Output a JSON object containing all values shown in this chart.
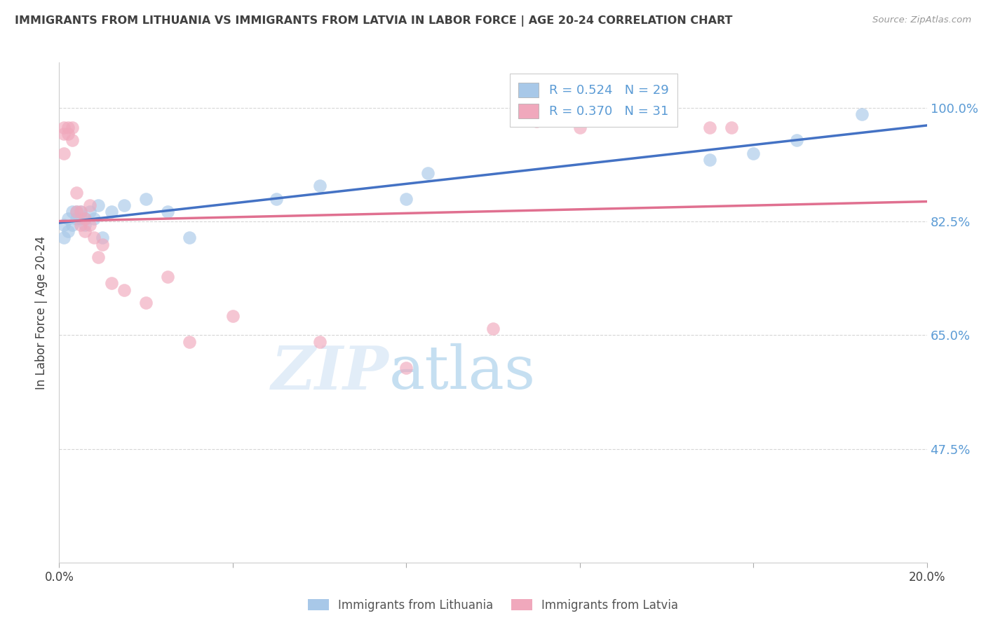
{
  "title": "IMMIGRANTS FROM LITHUANIA VS IMMIGRANTS FROM LATVIA IN LABOR FORCE | AGE 20-24 CORRELATION CHART",
  "source": "Source: ZipAtlas.com",
  "ylabel_label": "In Labor Force | Age 20-24",
  "xlim": [
    0.0,
    0.2
  ],
  "ylim": [
    0.3,
    1.07
  ],
  "xticks": [
    0.0,
    0.04,
    0.08,
    0.12,
    0.16,
    0.2
  ],
  "xtick_labels": [
    "0.0%",
    "",
    "",
    "",
    "",
    "20.0%"
  ],
  "ytick_vals": [
    0.475,
    0.65,
    0.825,
    1.0
  ],
  "ytick_labels": [
    "47.5%",
    "65.0%",
    "82.5%",
    "100.0%"
  ],
  "watermark_zip": "ZIP",
  "watermark_atlas": "atlas",
  "legend_R1": "R = 0.524",
  "legend_N1": "N = 29",
  "legend_R2": "R = 0.370",
  "legend_N2": "N = 31",
  "color_lithuania": "#a8c8e8",
  "color_latvia": "#f0a8bc",
  "trendline_lithuania_color": "#4472c4",
  "trendline_latvia_color": "#e07090",
  "background_color": "#ffffff",
  "grid_color": "#cccccc",
  "right_axis_color": "#5b9bd5",
  "title_color": "#404040",
  "label_color": "#404040",
  "lithuania_x": [
    0.001,
    0.001,
    0.002,
    0.002,
    0.003,
    0.003,
    0.004,
    0.004,
    0.005,
    0.005,
    0.006,
    0.006,
    0.007,
    0.008,
    0.009,
    0.01,
    0.012,
    0.015,
    0.02,
    0.025,
    0.03,
    0.05,
    0.06,
    0.08,
    0.085,
    0.15,
    0.16,
    0.17,
    0.185
  ],
  "lithuania_y": [
    0.82,
    0.8,
    0.83,
    0.81,
    0.84,
    0.82,
    0.84,
    0.83,
    0.84,
    0.83,
    0.83,
    0.82,
    0.84,
    0.83,
    0.85,
    0.8,
    0.84,
    0.85,
    0.86,
    0.84,
    0.8,
    0.86,
    0.88,
    0.86,
    0.9,
    0.92,
    0.93,
    0.95,
    0.99
  ],
  "latvia_x": [
    0.001,
    0.001,
    0.001,
    0.002,
    0.002,
    0.003,
    0.003,
    0.004,
    0.004,
    0.005,
    0.005,
    0.006,
    0.006,
    0.007,
    0.007,
    0.008,
    0.009,
    0.01,
    0.012,
    0.015,
    0.02,
    0.025,
    0.03,
    0.04,
    0.06,
    0.08,
    0.1,
    0.11,
    0.12,
    0.15,
    0.155
  ],
  "latvia_y": [
    0.97,
    0.96,
    0.93,
    0.97,
    0.96,
    0.97,
    0.95,
    0.84,
    0.87,
    0.84,
    0.82,
    0.83,
    0.81,
    0.85,
    0.82,
    0.8,
    0.77,
    0.79,
    0.73,
    0.72,
    0.7,
    0.74,
    0.64,
    0.68,
    0.64,
    0.6,
    0.66,
    0.98,
    0.97,
    0.97,
    0.97
  ]
}
